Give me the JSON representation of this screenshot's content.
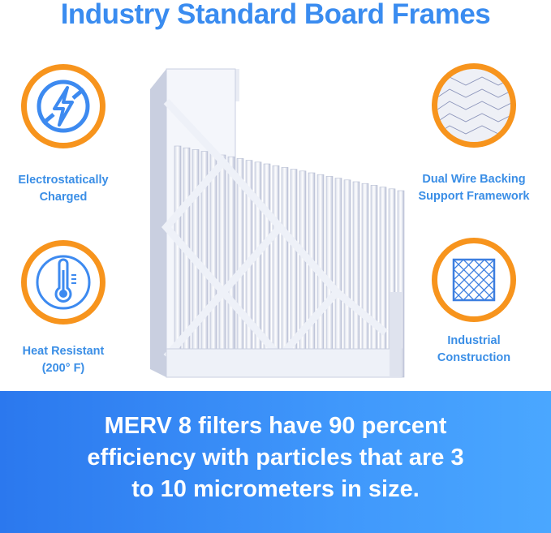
{
  "title": "Industry Standard Board Frames",
  "features": [
    {
      "label_line1": "Electrostatically",
      "label_line2": "Charged",
      "icon": "no-static-lightning-icon"
    },
    {
      "label_line1": "Heat Resistant",
      "label_line2": "(200° F)",
      "icon": "thermometer-icon"
    },
    {
      "label_line1": "Dual Wire Backing",
      "label_line2": "Support Framework",
      "icon": "wire-mesh-photo-icon"
    },
    {
      "label_line1": "Industrial",
      "label_line2": "Construction",
      "icon": "grid-frame-icon"
    }
  ],
  "banner": {
    "line1": "MERV 8 filters have 90 percent",
    "line2": "efficiency with particles that are 3",
    "line3": "to 10 micrometers in size."
  },
  "colors": {
    "accent_blue": "#3a8cf0",
    "ring_orange": "#f7941d"
  }
}
